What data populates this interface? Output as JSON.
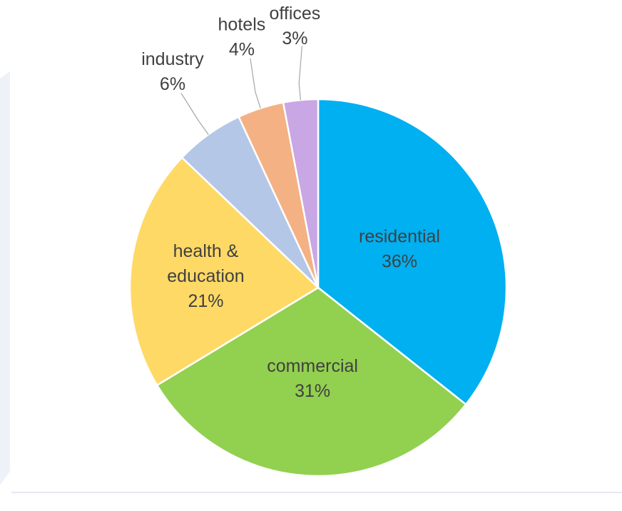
{
  "chart_data": {
    "type": "pie",
    "title": "",
    "slices": [
      {
        "label": "residential",
        "value": 36,
        "value_label": "36%",
        "color": "#00b0f0"
      },
      {
        "label": "commercial",
        "value": 31,
        "value_label": "31%",
        "color": "#92d050"
      },
      {
        "label": "health & education",
        "value": 21,
        "value_label": "21%",
        "color": "#ffd966"
      },
      {
        "label": "industry",
        "value": 6,
        "value_label": "6%",
        "color": "#b4c7e7"
      },
      {
        "label": "hotels",
        "value": 4,
        "value_label": "4%",
        "color": "#f4b183"
      },
      {
        "label": "offices",
        "value": 3,
        "value_label": "3%",
        "color": "#c9a6e4"
      }
    ],
    "start_angle": "12 o'clock",
    "direction": "clockwise",
    "legend": "none"
  },
  "colors": {
    "background_band": "#eef1f7",
    "leader_lines": "#a6a6a6",
    "label_text": "#404040"
  }
}
